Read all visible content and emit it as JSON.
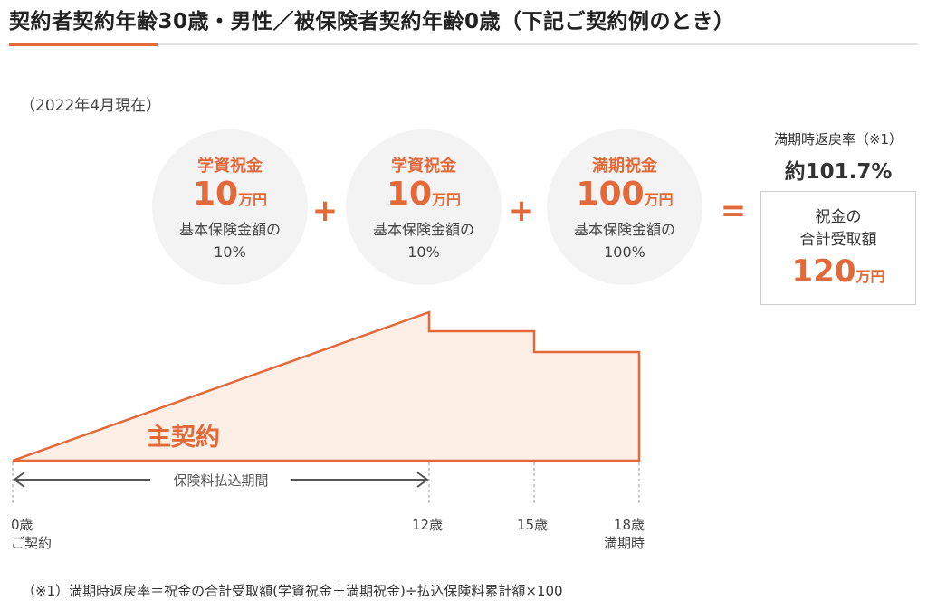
{
  "title": "契約者契約年齢30歳・男性／被保険者契約年齢0歳（下記ご契約例のとき）",
  "as_of": "（2022年4月現在）",
  "benefits": [
    {
      "name": "学資祝金",
      "amount": "10",
      "unit": "万円",
      "desc": "基本保険金額の",
      "percent": "10%"
    },
    {
      "name": "学資祝金",
      "amount": "10",
      "unit": "万円",
      "desc": "基本保険金額の",
      "percent": "10%"
    },
    {
      "name": "満期祝金",
      "amount": "100",
      "unit": "万円",
      "desc": "基本保険金額の",
      "percent": "100%"
    }
  ],
  "operators": {
    "plus": "+",
    "equals": "="
  },
  "return_rate": {
    "label": "満期時返戻率（※1）",
    "value": "約101.7%"
  },
  "total": {
    "line1": "祝金の",
    "line2": "合計受取額",
    "amount": "120",
    "unit": "万円"
  },
  "diagram": {
    "main_contract_label": "主契約",
    "payment_period_label": "保険料払込期間",
    "ages": [
      {
        "age": "0歳",
        "note": "ご契約"
      },
      {
        "age": "12歳",
        "note": ""
      },
      {
        "age": "15歳",
        "note": ""
      },
      {
        "age": "18歳",
        "note": "満期時"
      }
    ]
  },
  "footnote": "（※1）満期時返戻率＝祝金の合計受取額(学資祝金＋満期祝金)÷払込保険料累計額×100",
  "colors": {
    "accent": "#e2693a",
    "fill": "#fdeee6",
    "circle": "#f3f3f3"
  }
}
